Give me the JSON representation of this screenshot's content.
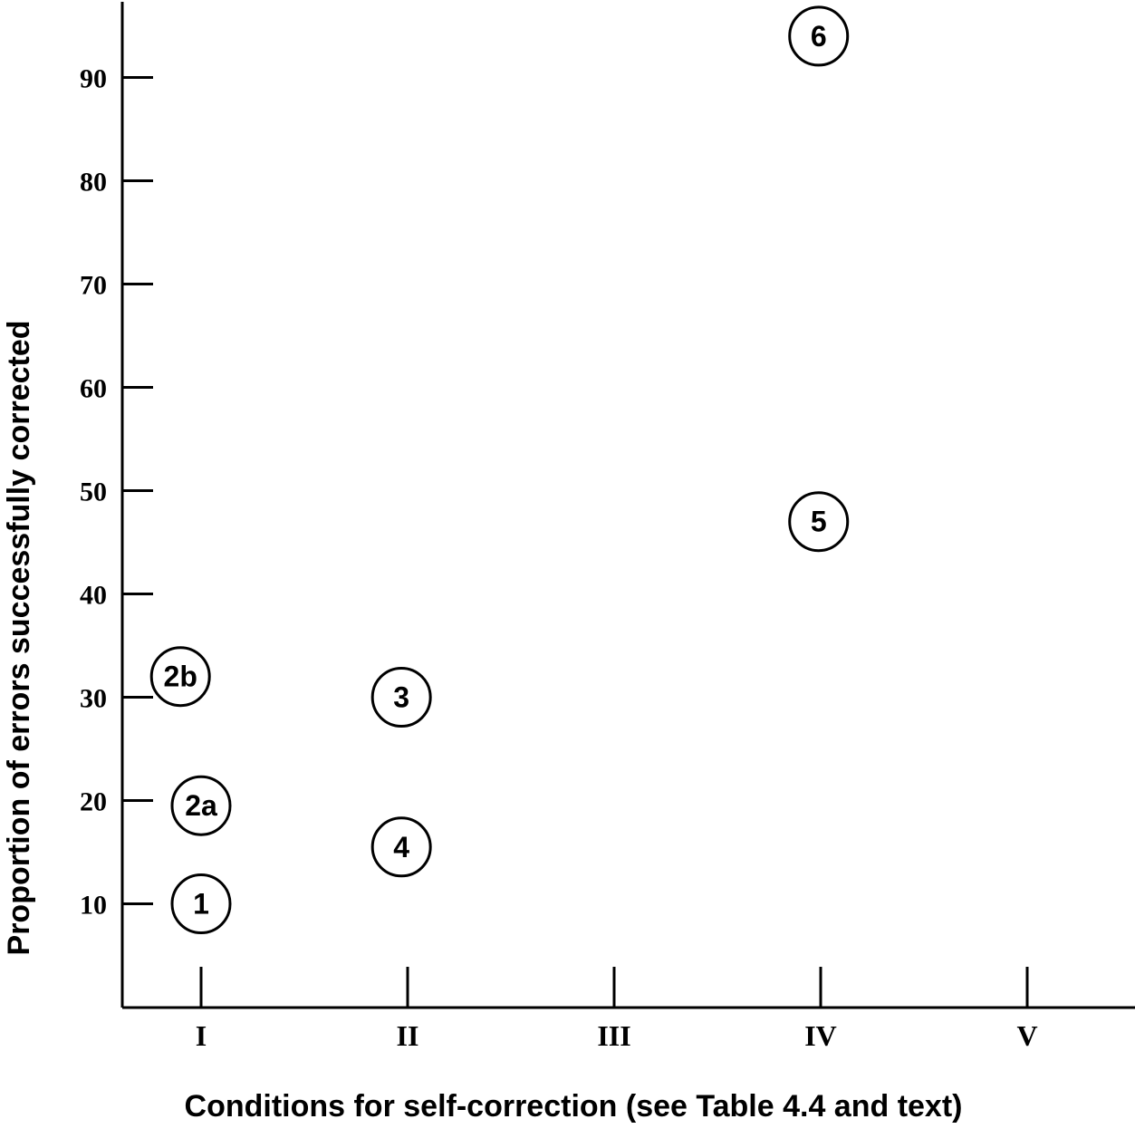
{
  "chart_data": {
    "type": "scatter",
    "title": "",
    "xlabel": "Conditions for self-correction (see Table 4.4 and text)",
    "ylabel": "Proportion of errors successfully corrected",
    "categories": [
      "I",
      "II",
      "III",
      "IV",
      "V"
    ],
    "y_ticks": [
      10,
      20,
      30,
      40,
      50,
      60,
      70,
      80,
      90
    ],
    "ylim": [
      0,
      100
    ],
    "grid": false,
    "points": [
      {
        "label": "1",
        "category": "I",
        "offset": 0.0,
        "value": 10
      },
      {
        "label": "2a",
        "category": "I",
        "offset": 0.0,
        "value": 19.5
      },
      {
        "label": "2b",
        "category": "I",
        "offset": -0.1,
        "value": 32
      },
      {
        "label": "3",
        "category": "II",
        "offset": -0.03,
        "value": 30
      },
      {
        "label": "4",
        "category": "II",
        "offset": -0.03,
        "value": 15.5
      },
      {
        "label": "5",
        "category": "IV",
        "offset": -0.01,
        "value": 47
      },
      {
        "label": "6",
        "category": "IV",
        "offset": -0.01,
        "value": 94
      }
    ]
  }
}
